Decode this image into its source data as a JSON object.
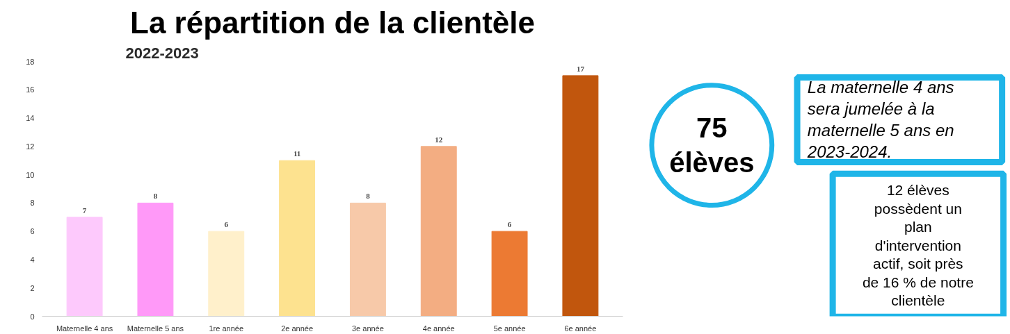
{
  "chart_data": {
    "type": "bar",
    "title": "La répartition de la clientèle",
    "subtitle": "2022-2023",
    "categories": [
      "Maternelle 4 ans",
      "Maternelle 5 ans",
      "1re année",
      "2e année",
      "3e année",
      "4e année",
      "5e année",
      "6e année"
    ],
    "values": [
      7,
      8,
      6,
      11,
      8,
      12,
      6,
      17
    ],
    "colors": [
      "#fdc9fc",
      "#ff99f8",
      "#fff0cb",
      "#fde28f",
      "#f7c9a9",
      "#f3ad82",
      "#ec7a33",
      "#c1560d"
    ],
    "ylim": [
      0,
      18
    ],
    "yticks": [
      0,
      2,
      4,
      6,
      8,
      10,
      12,
      14,
      16,
      18
    ],
    "data_labels": true,
    "grid": false,
    "annotations": [
      "75 élèves",
      "La maternelle 4 ans sera jumelée à la maternelle 5 ans en 2023-2024.",
      "12 élèves possèdent un plan d'intervention actif, soit près de 16 % de notre clientèle"
    ]
  }
}
